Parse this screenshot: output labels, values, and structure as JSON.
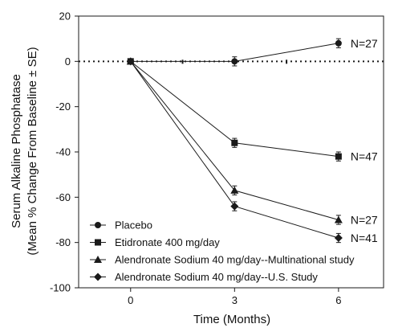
{
  "chart_data": {
    "type": "line",
    "title": "",
    "xlabel": "Time (Months)",
    "ylabel": [
      "Serum Alkaline Phosphatase",
      "(Mean % Change From Baseline ± SE)"
    ],
    "x": [
      0,
      3,
      6
    ],
    "x_ticks": [
      "0",
      "3",
      "6"
    ],
    "xlim": [
      -1.5,
      7.3
    ],
    "ylim": [
      -100,
      20
    ],
    "y_ticks": [
      "20",
      "0",
      "-20",
      "-40",
      "-60",
      "-80",
      "-100"
    ],
    "y_tick_values": [
      20,
      0,
      -20,
      -40,
      -60,
      -80,
      -100
    ],
    "reference_line": {
      "y": 0,
      "style": "dotted"
    },
    "legend_position": "bottom-left",
    "series": [
      {
        "name": "Placebo",
        "marker": "circle",
        "values": [
          0,
          0,
          8
        ],
        "err": [
          0,
          2,
          2
        ],
        "end_label": "N=27"
      },
      {
        "name": "Etidronate 400 mg/day",
        "marker": "square",
        "values": [
          0,
          -36,
          -42
        ],
        "err": [
          0,
          2,
          2
        ],
        "end_label": "N=47"
      },
      {
        "name": "Alendronate Sodium 40 mg/day--Multinational study",
        "marker": "triangle",
        "values": [
          0,
          -57,
          -70
        ],
        "err": [
          0,
          2,
          2
        ],
        "end_label": "N=27"
      },
      {
        "name": "Alendronate Sodium 40 mg/day--U.S. Study",
        "marker": "diamond",
        "values": [
          0,
          -64,
          -78
        ],
        "err": [
          0,
          2,
          2
        ],
        "end_label": "N=41"
      }
    ],
    "colors": {
      "line": "#1a1a1a",
      "background": "#ffffff"
    }
  }
}
